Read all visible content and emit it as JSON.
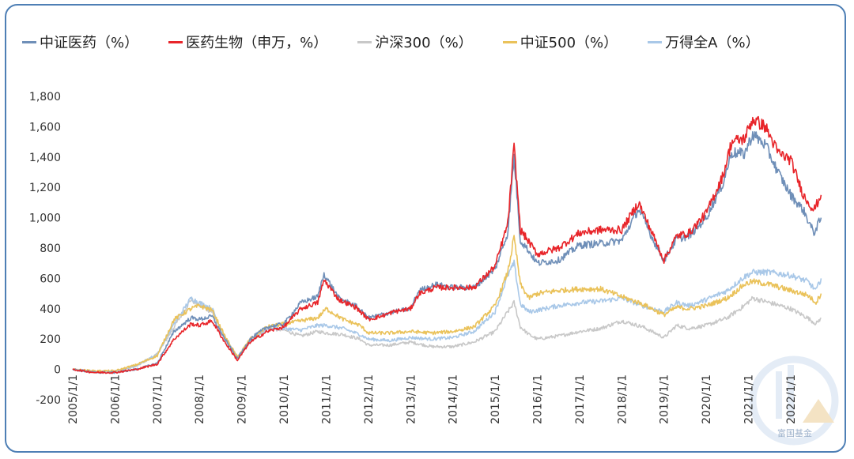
{
  "chart_data": {
    "type": "line",
    "title": "",
    "xlabel": "",
    "ylabel": "",
    "ylim": [
      -200,
      1800
    ],
    "yticks": [
      -200,
      0,
      200,
      400,
      600,
      800,
      1000,
      1200,
      1400,
      1600,
      1800
    ],
    "ytick_labels": [
      "-200",
      "0",
      "200",
      "400",
      "600",
      "800",
      "1,000",
      "1,200",
      "1,400",
      "1,600",
      "1,800"
    ],
    "xlim": [
      2005.0,
      2022.75
    ],
    "xticks": [
      2005,
      2006,
      2007,
      2008,
      2009,
      2010,
      2011,
      2012,
      2013,
      2014,
      2015,
      2016,
      2017,
      2018,
      2019,
      2020,
      2021,
      2022
    ],
    "xtick_labels": [
      "2005/1/1",
      "2006/1/1",
      "2007/1/1",
      "2008/1/1",
      "2009/1/1",
      "2010/1/1",
      "2011/1/1",
      "2012/1/1",
      "2013/1/1",
      "2014/1/1",
      "2015/1/1",
      "2016/1/1",
      "2017/1/1",
      "2018/1/1",
      "2019/1/1",
      "2020/1/1",
      "2021/1/1",
      "2022/1/1"
    ],
    "grid": false,
    "legend_position": "top",
    "series": [
      {
        "name": "中证医药（%）",
        "color": "#6f8fb8",
        "x": [
          2005.0,
          2005.5,
          2006.0,
          2006.5,
          2007.0,
          2007.4,
          2007.8,
          2008.0,
          2008.3,
          2008.6,
          2008.9,
          2009.2,
          2009.6,
          2010.0,
          2010.4,
          2010.8,
          2010.95,
          2011.3,
          2011.7,
          2012.0,
          2012.3,
          2012.6,
          2013.0,
          2013.2,
          2013.6,
          2014.0,
          2014.5,
          2015.0,
          2015.3,
          2015.45,
          2015.6,
          2015.75,
          2016.0,
          2016.5,
          2017.0,
          2017.5,
          2018.0,
          2018.4,
          2018.75,
          2019.0,
          2019.3,
          2019.6,
          2020.0,
          2020.4,
          2020.6,
          2020.9,
          2021.1,
          2021.4,
          2021.7,
          2022.0,
          2022.3,
          2022.55,
          2022.72
        ],
        "y": [
          0,
          -20,
          -20,
          0,
          40,
          250,
          340,
          330,
          350,
          200,
          70,
          200,
          280,
          300,
          440,
          480,
          630,
          470,
          420,
          340,
          360,
          380,
          400,
          520,
          560,
          540,
          540,
          660,
          900,
          1400,
          850,
          800,
          700,
          720,
          820,
          830,
          850,
          1060,
          850,
          720,
          860,
          880,
          1000,
          1230,
          1430,
          1420,
          1550,
          1480,
          1300,
          1150,
          1050,
          900,
          1000
        ]
      },
      {
        "name": "医药生物（申万，%）",
        "color": "#e8252a",
        "x": [
          2005.0,
          2005.5,
          2006.0,
          2006.5,
          2007.0,
          2007.4,
          2007.8,
          2008.0,
          2008.3,
          2008.6,
          2008.9,
          2009.2,
          2009.6,
          2010.0,
          2010.4,
          2010.8,
          2010.95,
          2011.3,
          2011.7,
          2012.0,
          2012.3,
          2012.6,
          2013.0,
          2013.2,
          2013.6,
          2014.0,
          2014.5,
          2015.0,
          2015.3,
          2015.45,
          2015.6,
          2015.75,
          2016.0,
          2016.5,
          2017.0,
          2017.5,
          2018.0,
          2018.4,
          2018.75,
          2019.0,
          2019.3,
          2019.6,
          2020.0,
          2020.4,
          2020.6,
          2020.9,
          2021.1,
          2021.4,
          2021.7,
          2022.0,
          2022.3,
          2022.55,
          2022.72
        ],
        "y": [
          0,
          -20,
          -20,
          0,
          35,
          200,
          300,
          290,
          320,
          180,
          60,
          180,
          250,
          280,
          400,
          440,
          590,
          460,
          410,
          330,
          350,
          380,
          400,
          500,
          540,
          540,
          540,
          680,
          960,
          1470,
          920,
          860,
          760,
          800,
          900,
          920,
          920,
          1100,
          880,
          720,
          880,
          900,
          1030,
          1280,
          1500,
          1520,
          1650,
          1600,
          1430,
          1380,
          1150,
          1050,
          1150
        ]
      },
      {
        "name": "沪深300（%）",
        "color": "#c8c8c8",
        "x": [
          2005.0,
          2005.5,
          2006.0,
          2006.5,
          2007.0,
          2007.4,
          2007.8,
          2008.0,
          2008.3,
          2008.6,
          2008.9,
          2009.2,
          2009.6,
          2010.0,
          2010.4,
          2010.8,
          2011.0,
          2011.4,
          2011.8,
          2012.0,
          2012.5,
          2013.0,
          2013.5,
          2014.0,
          2014.5,
          2015.0,
          2015.3,
          2015.45,
          2015.6,
          2015.8,
          2016.0,
          2016.5,
          2017.0,
          2017.5,
          2018.0,
          2018.5,
          2019.0,
          2019.3,
          2019.6,
          2020.0,
          2020.5,
          2020.9,
          2021.1,
          2021.5,
          2022.0,
          2022.4,
          2022.6,
          2022.72
        ],
        "y": [
          0,
          -15,
          -15,
          20,
          100,
          280,
          460,
          420,
          380,
          200,
          80,
          180,
          270,
          260,
          220,
          250,
          240,
          230,
          200,
          160,
          160,
          180,
          150,
          150,
          180,
          250,
          380,
          440,
          280,
          230,
          200,
          220,
          250,
          270,
          320,
          280,
          210,
          290,
          270,
          290,
          340,
          420,
          470,
          440,
          400,
          340,
          300,
          340
        ]
      },
      {
        "name": "中证500（%）",
        "color": "#eac25a",
        "x": [
          2005.0,
          2005.5,
          2006.0,
          2006.5,
          2007.0,
          2007.4,
          2007.8,
          2008.0,
          2008.3,
          2008.6,
          2008.9,
          2009.2,
          2009.6,
          2010.0,
          2010.4,
          2010.8,
          2011.0,
          2011.4,
          2011.8,
          2012.0,
          2012.5,
          2013.0,
          2013.5,
          2014.0,
          2014.5,
          2015.0,
          2015.3,
          2015.45,
          2015.6,
          2015.8,
          2016.0,
          2016.5,
          2017.0,
          2017.5,
          2018.0,
          2018.5,
          2019.0,
          2019.3,
          2019.6,
          2020.0,
          2020.5,
          2020.9,
          2021.1,
          2021.5,
          2022.0,
          2022.4,
          2022.6,
          2022.72
        ],
        "y": [
          0,
          -10,
          -10,
          30,
          90,
          330,
          400,
          420,
          390,
          220,
          80,
          200,
          280,
          300,
          320,
          340,
          400,
          330,
          290,
          240,
          240,
          250,
          240,
          250,
          280,
          420,
          640,
          870,
          560,
          470,
          500,
          520,
          530,
          530,
          480,
          430,
          360,
          410,
          400,
          420,
          470,
          560,
          580,
          560,
          520,
          490,
          440,
          500
        ]
      },
      {
        "name": "万得全A（%）",
        "color": "#a9c8e8",
        "x": [
          2005.0,
          2005.5,
          2006.0,
          2006.5,
          2007.0,
          2007.4,
          2007.8,
          2008.0,
          2008.3,
          2008.6,
          2008.9,
          2009.2,
          2009.6,
          2010.0,
          2010.4,
          2010.8,
          2011.0,
          2011.4,
          2011.8,
          2012.0,
          2012.5,
          2013.0,
          2013.5,
          2014.0,
          2014.5,
          2015.0,
          2015.3,
          2015.45,
          2015.6,
          2015.8,
          2016.0,
          2016.5,
          2017.0,
          2017.5,
          2018.0,
          2018.5,
          2019.0,
          2019.3,
          2019.6,
          2020.0,
          2020.5,
          2020.9,
          2021.1,
          2021.5,
          2022.0,
          2022.4,
          2022.6,
          2022.72
        ],
        "y": [
          0,
          -15,
          -15,
          25,
          100,
          300,
          470,
          440,
          400,
          210,
          80,
          190,
          270,
          270,
          260,
          290,
          290,
          270,
          230,
          200,
          190,
          210,
          200,
          210,
          250,
          380,
          620,
          700,
          430,
          380,
          390,
          420,
          440,
          450,
          470,
          420,
          380,
          440,
          420,
          460,
          520,
          610,
          640,
          640,
          620,
          580,
          520,
          600
        ]
      }
    ]
  },
  "watermark": {
    "text": "富国基金"
  }
}
